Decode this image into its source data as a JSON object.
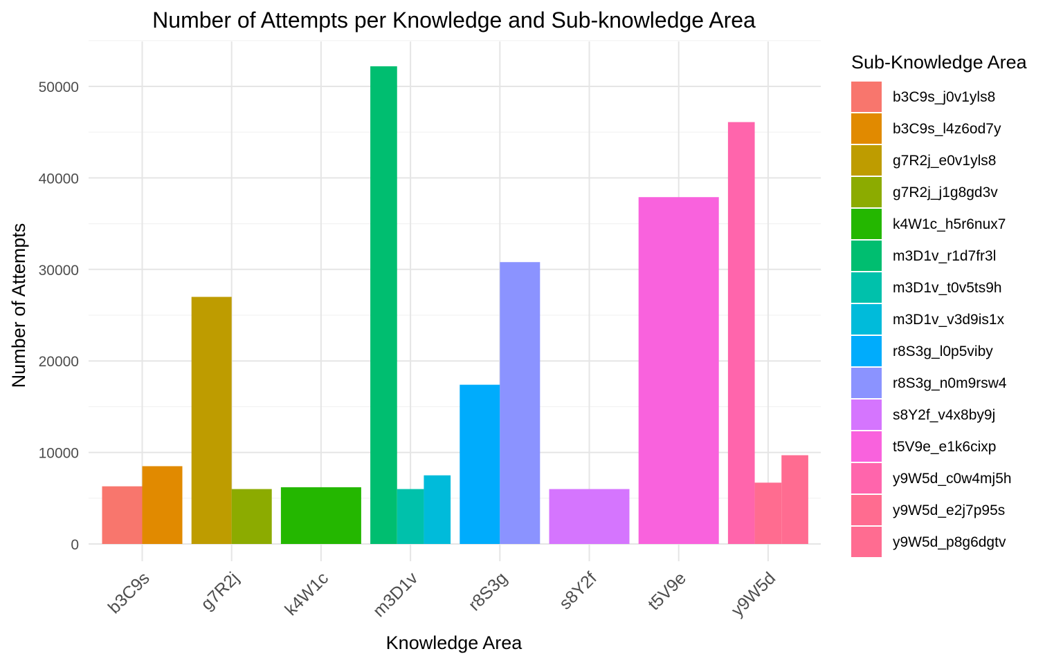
{
  "chart_data": {
    "type": "bar",
    "title": "Number of Attempts per Knowledge and Sub-knowledge Area",
    "xlabel": "Knowledge Area",
    "ylabel": "Number of Attempts",
    "ylim": [
      0,
      55000
    ],
    "yticks": [
      0,
      10000,
      20000,
      30000,
      40000,
      50000
    ],
    "grid": true,
    "legend_position": "right",
    "legend_title": "Sub-Knowledge Area",
    "categories": [
      "b3C9s",
      "g7R2j",
      "k4W1c",
      "m3D1v",
      "r8S3g",
      "s8Y2f",
      "t5V9e",
      "y9W5d"
    ],
    "series": [
      {
        "name": "b3C9s_j0v1yls8",
        "category": "b3C9s",
        "value": 6300,
        "color": "#F8766D"
      },
      {
        "name": "b3C9s_l4z6od7y",
        "category": "b3C9s",
        "value": 8500,
        "color": "#E18A00"
      },
      {
        "name": "g7R2j_e0v1yls8",
        "category": "g7R2j",
        "value": 27000,
        "color": "#BE9C00"
      },
      {
        "name": "g7R2j_j1g8gd3v",
        "category": "g7R2j",
        "value": 6000,
        "color": "#8CAB00"
      },
      {
        "name": "k4W1c_h5r6nux7",
        "category": "k4W1c",
        "value": 6200,
        "color": "#24B700"
      },
      {
        "name": "m3D1v_r1d7fr3l",
        "category": "m3D1v",
        "value": 52200,
        "color": "#00BE70"
      },
      {
        "name": "m3D1v_t0v5ts9h",
        "category": "m3D1v",
        "value": 6000,
        "color": "#00C1AB"
      },
      {
        "name": "m3D1v_v3d9is1x",
        "category": "m3D1v",
        "value": 7500,
        "color": "#00BBDA"
      },
      {
        "name": "r8S3g_l0p5viby",
        "category": "r8S3g",
        "value": 17400,
        "color": "#00ACFC"
      },
      {
        "name": "r8S3g_n0m9rsw4",
        "category": "r8S3g",
        "value": 30800,
        "color": "#8B93FF"
      },
      {
        "name": "s8Y2f_v4x8by9j",
        "category": "s8Y2f",
        "value": 6000,
        "color": "#D575FE"
      },
      {
        "name": "t5V9e_e1k6cixp",
        "category": "t5V9e",
        "value": 37900,
        "color": "#F962DD"
      },
      {
        "name": "y9W5d_c0w4mj5h",
        "category": "y9W5d",
        "value": 46100,
        "color": "#FF65AC"
      },
      {
        "name": "y9W5d_e2j7p95s",
        "category": "y9W5d",
        "value": 6700,
        "color": "#FF6C90"
      },
      {
        "name": "y9W5d_p8g6dgtv",
        "category": "y9W5d",
        "value": 9700,
        "color": "#FF6C91"
      }
    ]
  }
}
